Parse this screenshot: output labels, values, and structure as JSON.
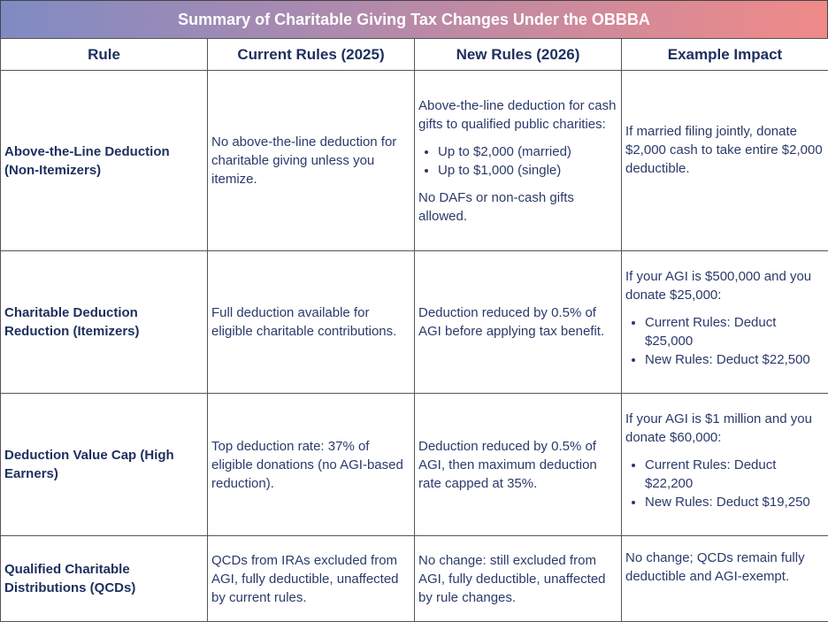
{
  "title": "Summary of Charitable Giving Tax Changes Under the OBBBA",
  "headers": [
    "Rule",
    "Current Rules (2025)",
    "New Rules (2026)",
    "Example Impact"
  ],
  "rows": [
    {
      "rule": "Above-the-Line Deduction (Non-Itemizers)",
      "current": "No above-the-line deduction for charitable giving unless you itemize.",
      "new_intro": "Above-the-line deduction for cash gifts to qualified public charities:",
      "new_bullets": [
        "Up to $2,000 (married)",
        "Up to $1,000 (single)"
      ],
      "new_outro": "No DAFs or non-cash gifts allowed.",
      "example": "If married filing jointly, donate $2,000 cash to take entire $2,000 deductible."
    },
    {
      "rule": "Charitable Deduction Reduction (Itemizers)",
      "current": "Full deduction available for eligible charitable contributions.",
      "new": "Deduction reduced by 0.5% of AGI before applying tax benefit.",
      "example_intro": "If your AGI is $500,000 and you donate $25,000:",
      "example_bullets": [
        "Current Rules: Deduct $25,000",
        "New Rules: Deduct $22,500"
      ]
    },
    {
      "rule": "Deduction Value Cap (High Earners)",
      "current": "Top deduction rate: 37% of eligible donations (no AGI-based reduction).",
      "new": "Deduction reduced by 0.5% of AGI, then maximum deduction rate capped at 35%.",
      "example_intro": "If your AGI is $1 million and you donate $60,000:",
      "example_bullets": [
        "Current Rules: Deduct $22,200",
        "New Rules: Deduct $19,250"
      ]
    },
    {
      "rule": "Qualified Charitable Distributions (QCDs)",
      "current": "QCDs from IRAs excluded from AGI, fully deductible, unaffected by current rules.",
      "new": "No change: still excluded from AGI, fully deductible, unaffected by rule changes.",
      "example": "No change; QCDs remain fully deductible and AGI-exempt."
    }
  ]
}
